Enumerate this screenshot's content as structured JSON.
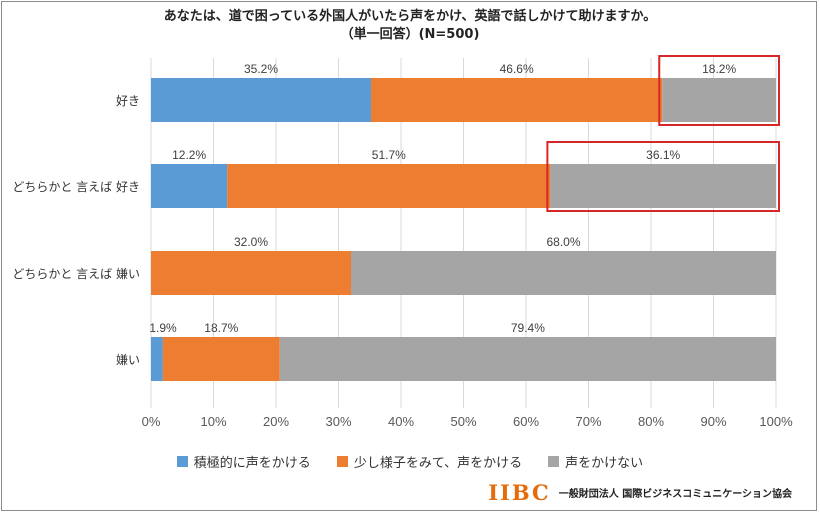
{
  "title": {
    "line1": "あなたは、道で困っている外国人がいたら声をかけ、英語で話しかけて助けますか。",
    "line2": "（単一回答）(N=500)"
  },
  "chart_data": {
    "type": "bar",
    "orientation": "horizontal",
    "stacked": "percent",
    "categories": [
      "好き",
      "どちらかと 言えば 好き",
      "どちらかと 言えば 嫌い",
      "嫌い"
    ],
    "series": [
      {
        "name": "積極的に声をかける",
        "color": "#5b9bd5",
        "values": [
          35.2,
          12.2,
          0,
          1.9
        ]
      },
      {
        "name": "少し様子をみて、声をかける",
        "color": "#ed7d31",
        "values": [
          46.6,
          51.7,
          32.0,
          18.7
        ]
      },
      {
        "name": "声をかけない",
        "color": "#a5a5a5",
        "values": [
          18.2,
          36.1,
          68.0,
          79.4
        ]
      }
    ],
    "data_labels": [
      [
        "35.2%",
        "46.6%",
        "18.2%"
      ],
      [
        "12.2%",
        "51.7%",
        "36.1%"
      ],
      [
        "",
        "32.0%",
        "68.0%"
      ],
      [
        "1.9%",
        "18.7%",
        "79.4%"
      ]
    ],
    "xlim": [
      0,
      100
    ],
    "x_ticks": [
      "0%",
      "10%",
      "20%",
      "30%",
      "40%",
      "50%",
      "60%",
      "70%",
      "80%",
      "90%",
      "100%"
    ],
    "grid": "vertical",
    "legend_position": "bottom",
    "highlight_boxes": [
      {
        "category_index": 0,
        "series_index": 2,
        "color": "#d62728"
      },
      {
        "category_index": 1,
        "series_index": 2,
        "color": "#d62728"
      }
    ]
  },
  "brand": {
    "logo": "IIBC",
    "org": "一般財団法人 国際ビジネスコミュニケーション協会"
  }
}
